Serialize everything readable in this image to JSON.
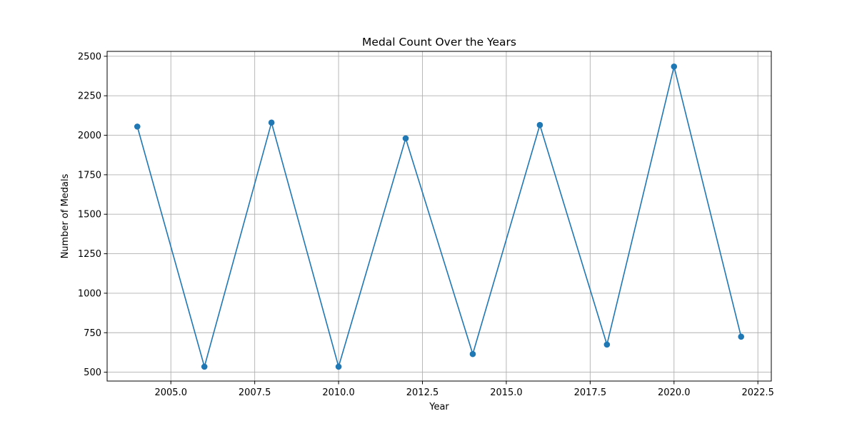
{
  "chart_data": {
    "type": "line",
    "title": "Medal Count Over the Years",
    "xlabel": "Year",
    "ylabel": "Number of Medals",
    "xlim": [
      2003.1,
      2022.9
    ],
    "ylim": [
      444,
      2531
    ],
    "xticks": [
      2005.0,
      2007.5,
      2010.0,
      2012.5,
      2015.0,
      2017.5,
      2020.0,
      2022.5
    ],
    "xtick_labels": [
      "2005.0",
      "2007.5",
      "2010.0",
      "2012.5",
      "2015.0",
      "2017.5",
      "2020.0",
      "2022.5"
    ],
    "yticks": [
      500,
      750,
      1000,
      1250,
      1500,
      1750,
      2000,
      2250,
      2500
    ],
    "ytick_labels": [
      "500",
      "750",
      "1000",
      "1250",
      "1500",
      "1750",
      "2000",
      "2250",
      "2500"
    ],
    "grid": true,
    "series": [
      {
        "x": [
          2004,
          2006,
          2008,
          2010,
          2012,
          2014,
          2016,
          2018,
          2020,
          2022
        ],
        "y": [
          2055,
          535,
          2080,
          535,
          1980,
          615,
          2065,
          675,
          2435,
          725
        ],
        "marker": "circle"
      }
    ],
    "colors": {
      "line": "#1f77b4",
      "grid": "#b0b0b0",
      "axes": "#000000"
    }
  }
}
